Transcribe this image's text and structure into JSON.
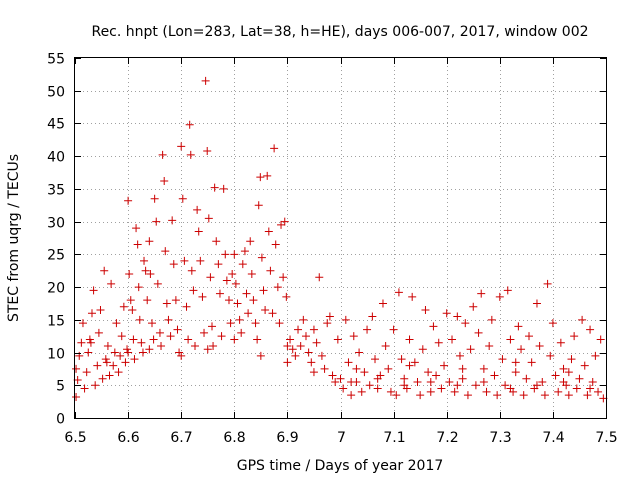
{
  "chart_data": {
    "type": "scatter",
    "title": "Rec. hnpt (Lon=283, Lat=38, h=HE), days 006-007, 2017, window 002",
    "xlabel": "GPS time / Days of year 2017",
    "ylabel": "STEC from uqrg / TECUs",
    "xlim": [
      6.5,
      7.5
    ],
    "ylim": [
      0,
      55
    ],
    "x_ticks": [
      6.5,
      6.6,
      6.7,
      6.8,
      6.9,
      7.0,
      7.1,
      7.2,
      7.3,
      7.4,
      7.5
    ],
    "x_tick_labels": [
      "6.5",
      "6.6",
      "6.7",
      "6.8",
      "6.9",
      "7",
      "7.1",
      "7.2",
      "7.3",
      "7.4",
      "7.5"
    ],
    "y_ticks": [
      0,
      5,
      10,
      15,
      20,
      25,
      30,
      35,
      40,
      45,
      50,
      55
    ],
    "y_tick_labels": [
      "0",
      "5",
      "10",
      "15",
      "20",
      "25",
      "30",
      "35",
      "40",
      "45",
      "50",
      "55"
    ],
    "grid": true,
    "marker": "+",
    "color": "#cc0000",
    "series": [
      {
        "name": "STEC",
        "points": [
          [
            6.502,
            3.2
          ],
          [
            6.505,
            5.8
          ],
          [
            6.508,
            9.5
          ],
          [
            6.512,
            11.5
          ],
          [
            6.515,
            14.5
          ],
          [
            6.518,
            4.5
          ],
          [
            6.522,
            7.0
          ],
          [
            6.525,
            10.0
          ],
          [
            6.528,
            12.0
          ],
          [
            6.532,
            16.0
          ],
          [
            6.535,
            19.5
          ],
          [
            6.538,
            5.0
          ],
          [
            6.542,
            8.0
          ],
          [
            6.545,
            13.0
          ],
          [
            6.548,
            16.5
          ],
          [
            6.552,
            6.0
          ],
          [
            6.555,
            22.5
          ],
          [
            6.558,
            9.0
          ],
          [
            6.562,
            11.0
          ],
          [
            6.565,
            6.5
          ],
          [
            6.568,
            20.5
          ],
          [
            6.572,
            8.0
          ],
          [
            6.575,
            10.0
          ],
          [
            6.578,
            14.5
          ],
          [
            6.582,
            7.0
          ],
          [
            6.585,
            9.5
          ],
          [
            6.588,
            12.5
          ],
          [
            6.592,
            17.0
          ],
          [
            6.595,
            8.5
          ],
          [
            6.598,
            10.5
          ],
          [
            6.6,
            33.2
          ],
          [
            6.602,
            22.0
          ],
          [
            6.605,
            18.0
          ],
          [
            6.608,
            16.5
          ],
          [
            6.61,
            12.0
          ],
          [
            6.612,
            9.0
          ],
          [
            6.615,
            29.0
          ],
          [
            6.618,
            26.5
          ],
          [
            6.62,
            20.0
          ],
          [
            6.622,
            15.0
          ],
          [
            6.625,
            11.5
          ],
          [
            6.628,
            10.0
          ],
          [
            6.63,
            24.0
          ],
          [
            6.633,
            22.5
          ],
          [
            6.636,
            18.0
          ],
          [
            6.64,
            27.0
          ],
          [
            6.642,
            22.0
          ],
          [
            6.645,
            14.5
          ],
          [
            6.648,
            12.0
          ],
          [
            6.65,
            33.5
          ],
          [
            6.653,
            30.0
          ],
          [
            6.656,
            20.5
          ],
          [
            6.66,
            13.0
          ],
          [
            6.662,
            11.0
          ],
          [
            6.665,
            40.2
          ],
          [
            6.668,
            36.2
          ],
          [
            6.67,
            25.5
          ],
          [
            6.673,
            17.5
          ],
          [
            6.676,
            15.0
          ],
          [
            6.68,
            12.5
          ],
          [
            6.683,
            30.2
          ],
          [
            6.686,
            23.5
          ],
          [
            6.69,
            18.0
          ],
          [
            6.693,
            13.5
          ],
          [
            6.696,
            10.0
          ],
          [
            6.7,
            41.5
          ],
          [
            6.703,
            33.5
          ],
          [
            6.706,
            24.0
          ],
          [
            6.71,
            17.0
          ],
          [
            6.713,
            12.0
          ],
          [
            6.716,
            44.8
          ],
          [
            6.718,
            40.2
          ],
          [
            6.72,
            22.5
          ],
          [
            6.723,
            19.5
          ],
          [
            6.726,
            11.0
          ],
          [
            6.73,
            31.8
          ],
          [
            6.733,
            28.5
          ],
          [
            6.736,
            24.0
          ],
          [
            6.74,
            18.5
          ],
          [
            6.743,
            13.0
          ],
          [
            6.746,
            51.5
          ],
          [
            6.749,
            40.8
          ],
          [
            6.752,
            30.5
          ],
          [
            6.755,
            21.5
          ],
          [
            6.758,
            14.0
          ],
          [
            6.76,
            11.0
          ],
          [
            6.763,
            35.2
          ],
          [
            6.766,
            27.0
          ],
          [
            6.77,
            23.5
          ],
          [
            6.773,
            19.0
          ],
          [
            6.776,
            12.5
          ],
          [
            6.78,
            35.0
          ],
          [
            6.783,
            25.0
          ],
          [
            6.786,
            21.0
          ],
          [
            6.79,
            18.0
          ],
          [
            6.793,
            14.5
          ],
          [
            6.796,
            22.0
          ],
          [
            6.8,
            25.0
          ],
          [
            6.803,
            20.5
          ],
          [
            6.806,
            17.5
          ],
          [
            6.81,
            15.0
          ],
          [
            6.813,
            13.0
          ],
          [
            6.816,
            23.5
          ],
          [
            6.82,
            25.5
          ],
          [
            6.823,
            19.0
          ],
          [
            6.826,
            16.0
          ],
          [
            6.83,
            27.0
          ],
          [
            6.833,
            22.0
          ],
          [
            6.836,
            18.0
          ],
          [
            6.84,
            14.5
          ],
          [
            6.843,
            12.0
          ],
          [
            6.846,
            32.5
          ],
          [
            6.849,
            36.8
          ],
          [
            6.852,
            24.5
          ],
          [
            6.855,
            19.5
          ],
          [
            6.858,
            16.5
          ],
          [
            6.862,
            37.0
          ],
          [
            6.865,
            28.5
          ],
          [
            6.868,
            22.5
          ],
          [
            6.872,
            16.0
          ],
          [
            6.875,
            41.2
          ],
          [
            6.878,
            26.5
          ],
          [
            6.882,
            20.0
          ],
          [
            6.885,
            14.5
          ],
          [
            6.888,
            29.5
          ],
          [
            6.892,
            21.5
          ],
          [
            6.895,
            30.0
          ],
          [
            6.898,
            18.5
          ],
          [
            6.9,
            11.0
          ],
          [
            6.905,
            12.0
          ],
          [
            6.91,
            10.5
          ],
          [
            6.915,
            9.5
          ],
          [
            6.92,
            13.5
          ],
          [
            6.925,
            11.0
          ],
          [
            6.93,
            15.0
          ],
          [
            6.935,
            12.5
          ],
          [
            6.94,
            10.0
          ],
          [
            6.945,
            8.5
          ],
          [
            6.95,
            13.5
          ],
          [
            6.955,
            11.5
          ],
          [
            6.96,
            21.5
          ],
          [
            6.965,
            9.5
          ],
          [
            6.97,
            7.5
          ],
          [
            6.975,
            14.5
          ],
          [
            6.98,
            15.5
          ],
          [
            6.985,
            6.5
          ],
          [
            6.99,
            5.5
          ],
          [
            6.995,
            12.0
          ],
          [
            6.502,
            7.5
          ],
          [
            6.53,
            11.5
          ],
          [
            6.56,
            8.5
          ],
          [
            6.6,
            10.0
          ],
          [
            6.64,
            10.5
          ],
          [
            6.7,
            9.5
          ],
          [
            6.75,
            10.5
          ],
          [
            6.8,
            12.0
          ],
          [
            6.85,
            9.5
          ],
          [
            6.9,
            8.5
          ],
          [
            6.95,
            7.0
          ],
          [
            7.0,
            6.0
          ],
          [
            7.005,
            4.5
          ],
          [
            7.01,
            15.0
          ],
          [
            7.015,
            8.5
          ],
          [
            7.02,
            3.5
          ],
          [
            7.025,
            12.5
          ],
          [
            7.03,
            5.5
          ],
          [
            7.035,
            10.0
          ],
          [
            7.04,
            4.0
          ],
          [
            7.045,
            7.0
          ],
          [
            7.05,
            13.5
          ],
          [
            7.055,
            5.0
          ],
          [
            7.06,
            15.5
          ],
          [
            7.065,
            9.0
          ],
          [
            7.07,
            4.5
          ],
          [
            7.075,
            6.5
          ],
          [
            7.08,
            17.5
          ],
          [
            7.085,
            11.0
          ],
          [
            7.09,
            7.5
          ],
          [
            7.095,
            4.0
          ],
          [
            7.1,
            13.5
          ],
          [
            7.105,
            3.5
          ],
          [
            7.11,
            19.2
          ],
          [
            7.115,
            9.0
          ],
          [
            7.12,
            6.0
          ],
          [
            7.125,
            4.5
          ],
          [
            7.13,
            12.0
          ],
          [
            7.135,
            18.5
          ],
          [
            7.14,
            8.5
          ],
          [
            7.145,
            5.5
          ],
          [
            7.15,
            3.5
          ],
          [
            7.155,
            10.5
          ],
          [
            7.16,
            16.5
          ],
          [
            7.165,
            7.0
          ],
          [
            7.17,
            4.0
          ],
          [
            7.175,
            14.0
          ],
          [
            7.18,
            6.5
          ],
          [
            7.185,
            11.5
          ],
          [
            7.19,
            4.5
          ],
          [
            7.195,
            8.0
          ],
          [
            7.2,
            16.0
          ],
          [
            7.205,
            5.5
          ],
          [
            7.21,
            12.0
          ],
          [
            7.215,
            4.0
          ],
          [
            7.22,
            15.5
          ],
          [
            7.225,
            9.5
          ],
          [
            7.23,
            6.0
          ],
          [
            7.235,
            14.5
          ],
          [
            7.24,
            3.5
          ],
          [
            7.245,
            10.5
          ],
          [
            7.25,
            17.0
          ],
          [
            7.255,
            5.0
          ],
          [
            7.26,
            13.0
          ],
          [
            7.265,
            19.0
          ],
          [
            7.27,
            7.5
          ],
          [
            7.275,
            4.0
          ],
          [
            7.28,
            11.0
          ],
          [
            7.285,
            15.0
          ],
          [
            7.29,
            6.5
          ],
          [
            7.295,
            3.5
          ],
          [
            7.3,
            18.5
          ],
          [
            7.305,
            9.0
          ],
          [
            7.31,
            5.0
          ],
          [
            7.315,
            19.5
          ],
          [
            7.32,
            12.0
          ],
          [
            7.325,
            4.0
          ],
          [
            7.33,
            7.0
          ],
          [
            7.335,
            14.0
          ],
          [
            7.34,
            10.5
          ],
          [
            7.345,
            3.5
          ],
          [
            7.35,
            6.0
          ],
          [
            7.355,
            12.5
          ],
          [
            7.36,
            8.5
          ],
          [
            7.365,
            4.5
          ],
          [
            7.37,
            17.5
          ],
          [
            7.375,
            11.0
          ],
          [
            7.38,
            5.5
          ],
          [
            7.385,
            3.5
          ],
          [
            7.39,
            20.5
          ],
          [
            7.395,
            9.5
          ],
          [
            7.4,
            14.5
          ],
          [
            7.405,
            6.5
          ],
          [
            7.41,
            4.0
          ],
          [
            7.415,
            11.5
          ],
          [
            7.42,
            7.5
          ],
          [
            7.425,
            5.0
          ],
          [
            7.43,
            3.5
          ],
          [
            7.435,
            9.0
          ],
          [
            7.44,
            12.5
          ],
          [
            7.445,
            4.5
          ],
          [
            7.45,
            6.0
          ],
          [
            7.455,
            15.0
          ],
          [
            7.46,
            8.0
          ],
          [
            7.465,
            3.5
          ],
          [
            7.47,
            13.5
          ],
          [
            7.475,
            5.5
          ],
          [
            7.48,
            9.5
          ],
          [
            7.485,
            4.0
          ],
          [
            7.49,
            12.0
          ],
          [
            7.495,
            3.0
          ],
          [
            7.02,
            5.5
          ],
          [
            7.07,
            6.0
          ],
          [
            7.12,
            5.0
          ],
          [
            7.17,
            5.5
          ],
          [
            7.22,
            5.0
          ],
          [
            7.27,
            5.5
          ],
          [
            7.32,
            4.5
          ],
          [
            7.37,
            5.0
          ],
          [
            7.42,
            5.5
          ],
          [
            7.47,
            4.5
          ],
          [
            7.03,
            7.5
          ],
          [
            7.13,
            8.0
          ],
          [
            7.23,
            7.5
          ],
          [
            7.33,
            8.5
          ],
          [
            7.43,
            7.0
          ]
        ]
      }
    ]
  }
}
